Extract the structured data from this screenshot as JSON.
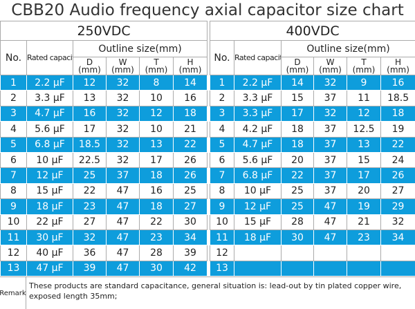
{
  "title": "CBB20 Audio frequency axial capacitor size chart",
  "headers": {
    "no": "No.",
    "capacitance": "Rated capacitance",
    "outline": "Outline size(mm)",
    "D": "D",
    "W": "W",
    "T": "T",
    "H": "H",
    "unit": "(mm)"
  },
  "accent_color": "#0e9ddc",
  "tables": [
    {
      "voltage": "250VDC",
      "rows": [
        [
          "1",
          "2.2 µF",
          "12",
          "32",
          "8",
          "14"
        ],
        [
          "2",
          "3.3 µF",
          "13",
          "32",
          "10",
          "16"
        ],
        [
          "3",
          "4.7 µF",
          "16",
          "32",
          "12",
          "18"
        ],
        [
          "4",
          "5.6 µF",
          "17",
          "32",
          "10",
          "21"
        ],
        [
          "5",
          "6.8 µF",
          "18.5",
          "32",
          "13",
          "22"
        ],
        [
          "6",
          "10 µF",
          "22.5",
          "32",
          "17",
          "26"
        ],
        [
          "7",
          "12 µF",
          "25",
          "37",
          "18",
          "26"
        ],
        [
          "8",
          "15 µF",
          "22",
          "47",
          "16",
          "25"
        ],
        [
          "9",
          "18 µF",
          "23",
          "47",
          "18",
          "27"
        ],
        [
          "10",
          "22 µF",
          "27",
          "47",
          "22",
          "30"
        ],
        [
          "11",
          "30 µF",
          "32",
          "47",
          "23",
          "34"
        ],
        [
          "12",
          "40 µF",
          "36",
          "47",
          "28",
          "39"
        ],
        [
          "13",
          "47 µF",
          "39",
          "47",
          "30",
          "42"
        ]
      ]
    },
    {
      "voltage": "400VDC",
      "rows": [
        [
          "1",
          "2.2 µF",
          "14",
          "32",
          "9",
          "16"
        ],
        [
          "2",
          "3.3 µF",
          "15",
          "37",
          "11",
          "18.5"
        ],
        [
          "3",
          "3.3 µF",
          "17",
          "32",
          "12",
          "18"
        ],
        [
          "4",
          "4.2 µF",
          "18",
          "37",
          "12.5",
          "19"
        ],
        [
          "5",
          "4.7 µF",
          "18",
          "37",
          "13",
          "22"
        ],
        [
          "6",
          "5.6 µF",
          "20",
          "37",
          "15",
          "24"
        ],
        [
          "7",
          "6.8 µF",
          "22",
          "37",
          "17",
          "26"
        ],
        [
          "8",
          "10 µF",
          "25",
          "37",
          "20",
          "27"
        ],
        [
          "9",
          "12 µF",
          "25",
          "47",
          "19",
          "29"
        ],
        [
          "10",
          "15 µF",
          "28",
          "47",
          "21",
          "32"
        ],
        [
          "11",
          "18 µF",
          "30",
          "47",
          "23",
          "34"
        ],
        [
          "12",
          "",
          "",
          "",
          "",
          ""
        ],
        [
          "13",
          "",
          "",
          "",
          "",
          ""
        ]
      ]
    }
  ],
  "remark": {
    "label": "Remark",
    "text": "These products are standard capacitance, general situation is: lead-out by tin plated copper wire, exposed length 35mm;"
  }
}
